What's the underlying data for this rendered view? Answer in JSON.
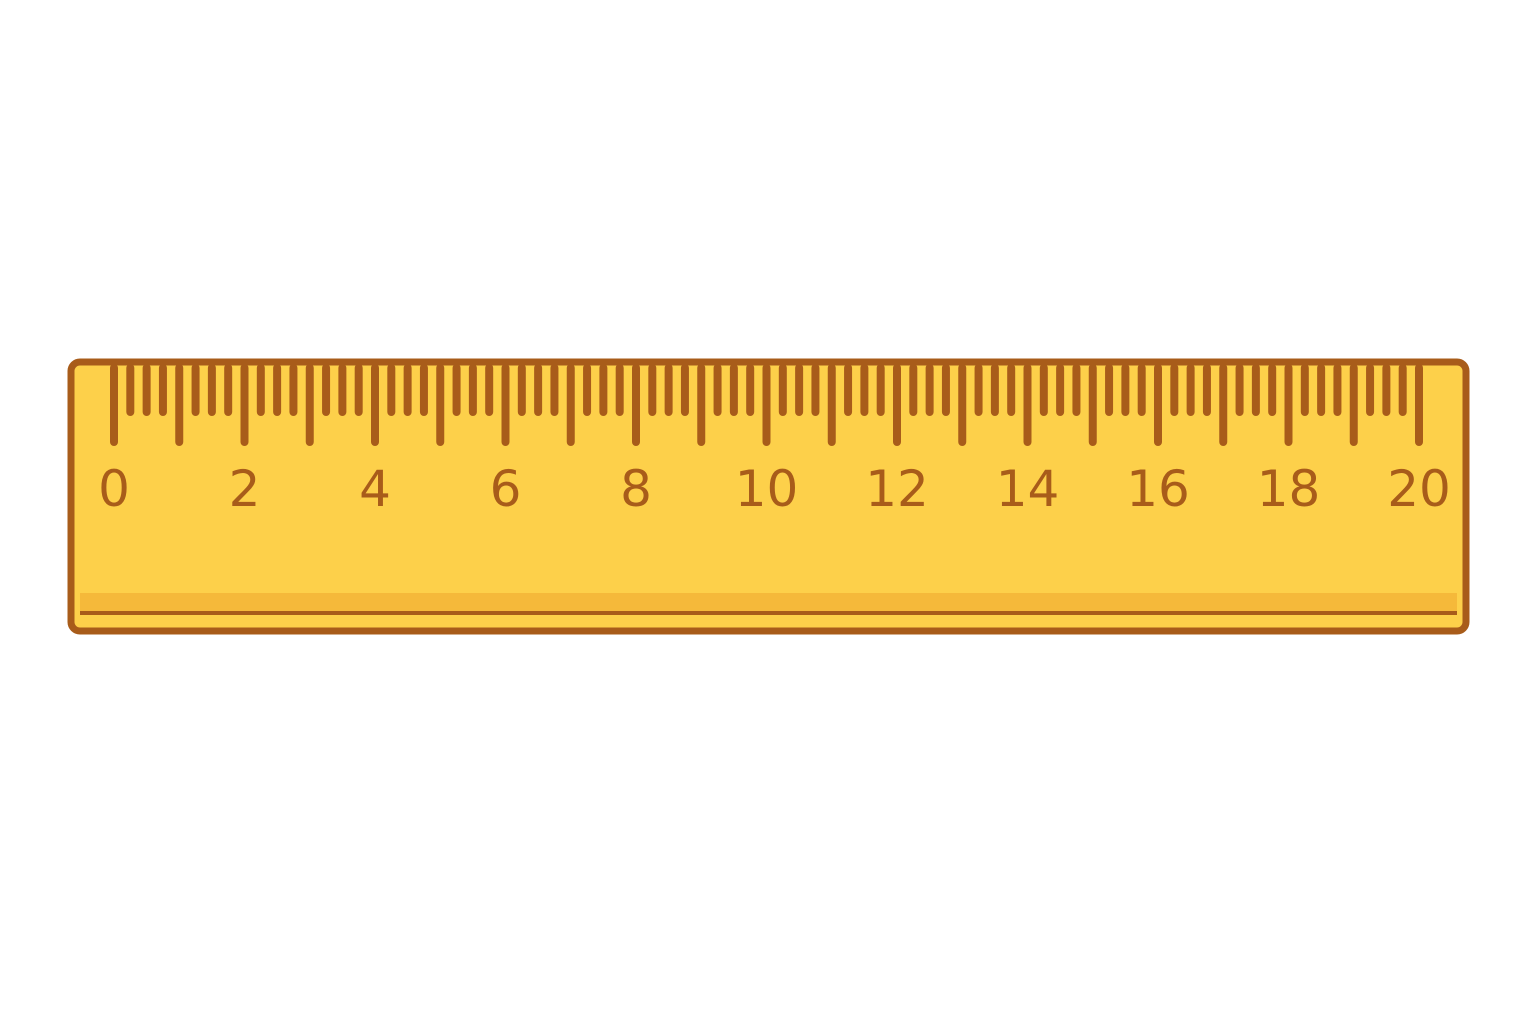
{
  "ruler": {
    "min_value": 0,
    "max_value": 20,
    "labeled_values": [
      0,
      2,
      4,
      6,
      8,
      10,
      12,
      14,
      16,
      18,
      20
    ],
    "labels": [
      "0",
      "2",
      "4",
      "6",
      "8",
      "10",
      "12",
      "14",
      "16",
      "18",
      "20"
    ],
    "minor_divisions_per_unit": 4,
    "colors": {
      "body": "#fdd04a",
      "bottom_edge": "#f5b93a",
      "outline": "#a85c1a",
      "marks": "#a85c1a"
    }
  }
}
